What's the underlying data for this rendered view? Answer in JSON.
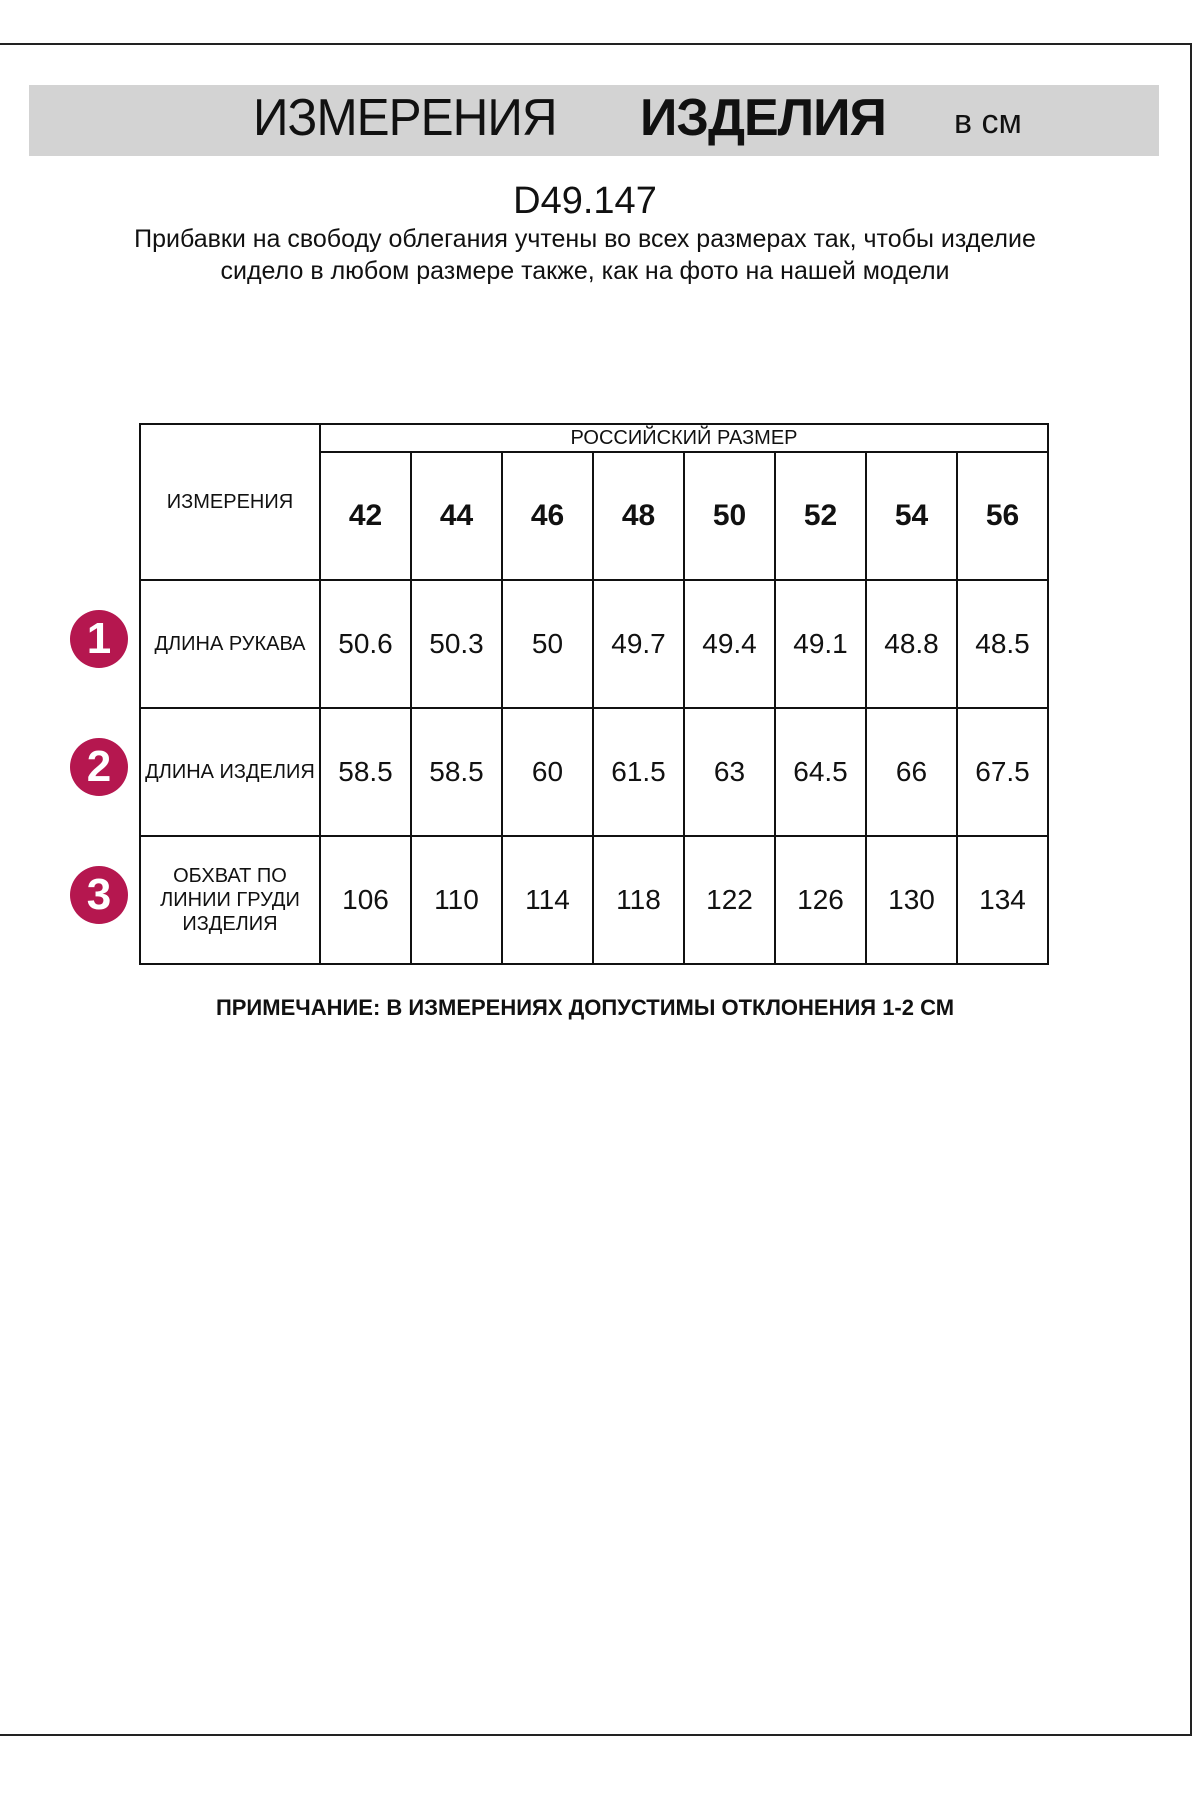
{
  "header": {
    "title_regular": "ИЗМЕРЕНИЯ",
    "title_bold": "ИЗДЕЛИЯ",
    "unit": "в см"
  },
  "product_code": "D49.147",
  "description": "Прибавки на свободу облегания учтены во всех размерах так, чтобы изделие сидело в любом размере также, как на фото на нашей модели",
  "table": {
    "corner_label": "ИЗМЕРЕНИЯ",
    "group_label": "РОССИЙСКИЙ РАЗМЕР",
    "sizes": [
      "42",
      "44",
      "46",
      "48",
      "50",
      "52",
      "54",
      "56"
    ],
    "rows": [
      {
        "number": "1",
        "label": "ДЛИНА РУКАВА",
        "values": [
          "50.6",
          "50.3",
          "50",
          "49.7",
          "49.4",
          "49.1",
          "48.8",
          "48.5"
        ]
      },
      {
        "number": "2",
        "label": "ДЛИНА ИЗДЕЛИЯ",
        "values": [
          "58.5",
          "58.5",
          "60",
          "61.5",
          "63",
          "64.5",
          "66",
          "67.5"
        ]
      },
      {
        "number": "3",
        "label": "ОБХВАТ ПО ЛИНИИ ГРУДИ ИЗДЕЛИЯ",
        "values": [
          "106",
          "110",
          "114",
          "118",
          "122",
          "126",
          "130",
          "134"
        ]
      }
    ],
    "badge_color": "#b5174f"
  },
  "note": "ПРИМЕЧАНИЕ: В ИЗМЕРЕНИЯХ ДОПУСТИМЫ ОТКЛОНЕНИЯ 1-2 СМ"
}
